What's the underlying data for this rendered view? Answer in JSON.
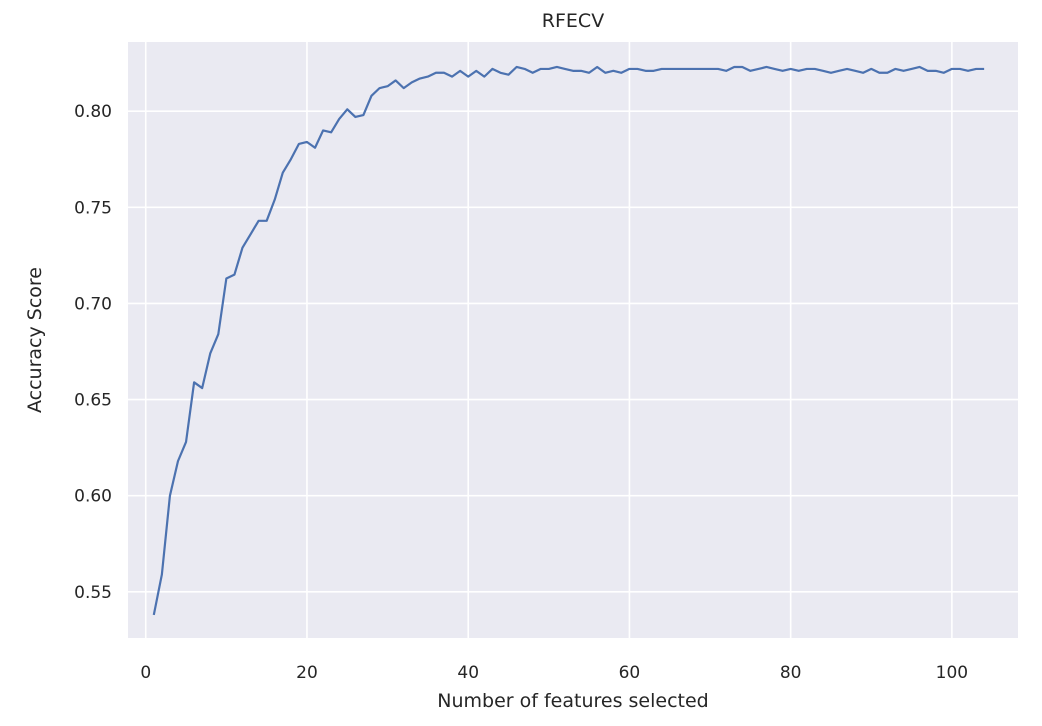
{
  "chart_data": {
    "type": "line",
    "title": "RFECV",
    "xlabel": "Number of features selected",
    "ylabel": "Accuracy Score",
    "xlim": [
      -2.2,
      108.2
    ],
    "ylim": [
      0.526,
      0.836
    ],
    "xticks": [
      0,
      20,
      40,
      60,
      80,
      100
    ],
    "yticks": [
      0.55,
      0.6,
      0.65,
      0.7,
      0.75,
      0.8
    ],
    "ytick_labels": [
      "0.55",
      "0.60",
      "0.65",
      "0.70",
      "0.75",
      "0.80"
    ],
    "grid": true,
    "line_color": "#4c72b0",
    "background_color": "#eaeaf2",
    "x": [
      1,
      2,
      3,
      4,
      5,
      6,
      7,
      8,
      9,
      10,
      11,
      12,
      13,
      14,
      15,
      16,
      17,
      18,
      19,
      20,
      21,
      22,
      23,
      24,
      25,
      26,
      27,
      28,
      29,
      30,
      31,
      32,
      33,
      34,
      35,
      36,
      37,
      38,
      39,
      40,
      41,
      42,
      43,
      44,
      45,
      46,
      47,
      48,
      49,
      50,
      51,
      52,
      53,
      54,
      55,
      56,
      57,
      58,
      59,
      60,
      61,
      62,
      63,
      64,
      65,
      66,
      67,
      68,
      69,
      70,
      71,
      72,
      73,
      74,
      75,
      76,
      77,
      78,
      79,
      80,
      81,
      82,
      83,
      84,
      85,
      86,
      87,
      88,
      89,
      90,
      91,
      92,
      93,
      94,
      95,
      96,
      97,
      98,
      99,
      100,
      101,
      102,
      103,
      104
    ],
    "y": [
      0.538,
      0.559,
      0.6,
      0.618,
      0.628,
      0.659,
      0.656,
      0.674,
      0.684,
      0.713,
      0.715,
      0.729,
      0.736,
      0.743,
      0.743,
      0.754,
      0.768,
      0.775,
      0.783,
      0.784,
      0.781,
      0.79,
      0.789,
      0.796,
      0.801,
      0.797,
      0.798,
      0.808,
      0.812,
      0.813,
      0.816,
      0.812,
      0.815,
      0.817,
      0.818,
      0.82,
      0.82,
      0.818,
      0.821,
      0.818,
      0.821,
      0.818,
      0.822,
      0.82,
      0.819,
      0.823,
      0.822,
      0.82,
      0.822,
      0.822,
      0.823,
      0.822,
      0.821,
      0.821,
      0.82,
      0.823,
      0.82,
      0.821,
      0.82,
      0.822,
      0.822,
      0.821,
      0.821,
      0.822,
      0.822,
      0.822,
      0.822,
      0.822,
      0.822,
      0.822,
      0.822,
      0.821,
      0.823,
      0.823,
      0.821,
      0.822,
      0.823,
      0.822,
      0.821,
      0.822,
      0.821,
      0.822,
      0.822,
      0.821,
      0.82,
      0.821,
      0.822,
      0.821,
      0.82,
      0.822,
      0.82,
      0.82,
      0.822,
      0.821,
      0.822,
      0.823,
      0.821,
      0.821,
      0.82,
      0.822,
      0.822,
      0.821,
      0.822,
      0.822
    ]
  }
}
